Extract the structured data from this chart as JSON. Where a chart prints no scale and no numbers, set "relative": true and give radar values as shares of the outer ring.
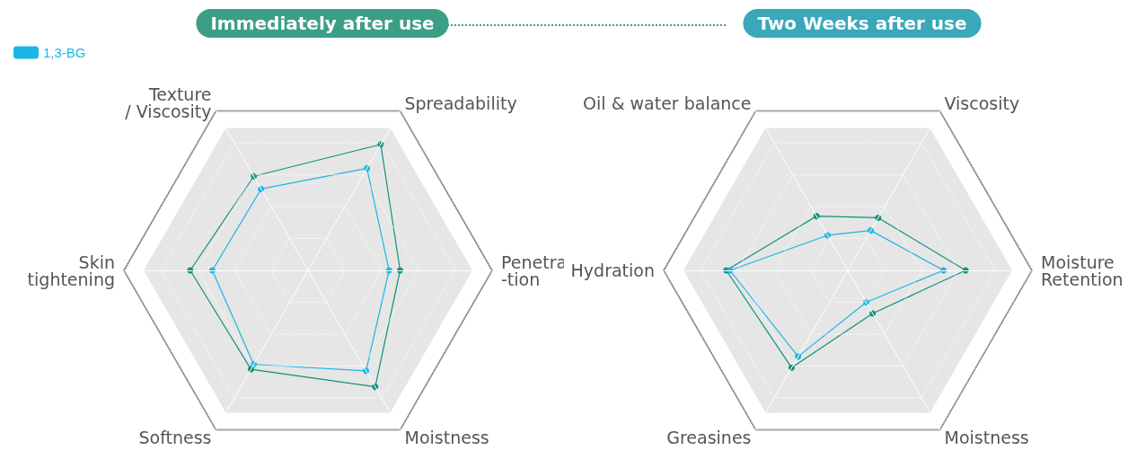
{
  "chart_data": [
    {
      "type": "radar",
      "title": "Immediately after use",
      "relative": true,
      "legend": "top left",
      "marker": "circle",
      "grid": true,
      "categories": [
        "Spreadability",
        "Penetra\n-tion",
        "Moistness",
        "Softness",
        "Skin\ntightening",
        "Texture\n/ Viscosity"
      ],
      "series": [
        {
          "color": "#11907c",
          "values": [
            0.79,
            0.5,
            0.73,
            0.62,
            0.64,
            0.59
          ]
        },
        {
          "name": "1,3-BG",
          "color": "#1ab6e6",
          "values": [
            0.64,
            0.44,
            0.63,
            0.59,
            0.52,
            0.51
          ]
        }
      ]
    },
    {
      "type": "radar",
      "title": "Two Weeks after use",
      "relative": true,
      "marker": "circle",
      "grid": true,
      "categories": [
        "Viscosity",
        "Moisture\nRetention",
        "Moistness",
        "Greasines",
        "Hydration",
        "Oil & water balance"
      ],
      "series": [
        {
          "color": "#11907c",
          "values": [
            0.33,
            0.64,
            0.27,
            0.61,
            0.66,
            0.34
          ]
        },
        {
          "color": "#1ab6e6",
          "values": [
            0.25,
            0.52,
            0.2,
            0.54,
            0.64,
            0.22
          ]
        }
      ]
    }
  ]
}
